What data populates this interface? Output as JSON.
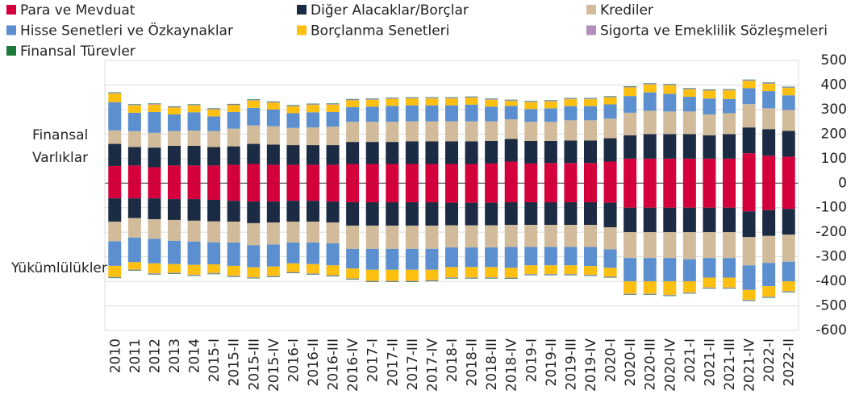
{
  "chart_data": {
    "type": "bar",
    "stacked": true,
    "annotations": [
      [
        "Finansal",
        "Varlıklar"
      ],
      [
        "Yükümlülükler"
      ]
    ],
    "categories": [
      "2010",
      "2011",
      "2012",
      "2013",
      "2014",
      "2015-I",
      "2015-II",
      "2015-III",
      "2015-IV",
      "2016-I",
      "2016-II",
      "2016-III",
      "2016-IV",
      "2017-I",
      "2017-II",
      "2017-III",
      "2017-IV",
      "2018-I",
      "2018-II",
      "2018-III",
      "2018-IV",
      "2019-I",
      "2019-II",
      "2019-III",
      "2019-IV",
      "2020-I",
      "2020-II",
      "2020-III",
      "2020-IV",
      "2021-I",
      "2021-II",
      "2021-III",
      "2021-IV",
      "2022-I",
      "2022-II"
    ],
    "series": [
      {
        "name": "Para ve Mevduat",
        "color": "#d4003b",
        "values": [
          70,
          72,
          65,
          72,
          72,
          72,
          75,
          78,
          75,
          75,
          75,
          75,
          78,
          78,
          78,
          78,
          78,
          78,
          78,
          80,
          88,
          80,
          82,
          82,
          82,
          88,
          100,
          100,
          100,
          100,
          100,
          100,
          122,
          112,
          108
        ],
        "liabilities": [
          -62,
          -62,
          -62,
          -65,
          -65,
          -68,
          -72,
          -75,
          -75,
          -72,
          -72,
          -75,
          -78,
          -78,
          -78,
          -78,
          -78,
          -80,
          -80,
          -80,
          -78,
          -78,
          -78,
          -78,
          -78,
          -80,
          -100,
          -100,
          -100,
          -100,
          -100,
          -100,
          -115,
          -110,
          -105
        ]
      },
      {
        "name": "Diğer Alacaklar/Borçlar",
        "color": "#1a2b43",
        "values": [
          90,
          75,
          80,
          80,
          80,
          75,
          75,
          82,
          82,
          80,
          80,
          80,
          90,
          90,
          90,
          92,
          92,
          92,
          92,
          92,
          92,
          92,
          90,
          92,
          92,
          95,
          95,
          100,
          100,
          100,
          95,
          100,
          105,
          108,
          105
        ],
        "liabilities": [
          -95,
          -80,
          -85,
          -85,
          -88,
          -88,
          -85,
          -88,
          -85,
          -85,
          -85,
          -85,
          -95,
          -95,
          -95,
          -95,
          -95,
          -92,
          -92,
          -92,
          -92,
          -92,
          -92,
          -92,
          -92,
          -100,
          -100,
          -100,
          -100,
          -100,
          -100,
          -100,
          -105,
          -105,
          -105
        ]
      },
      {
        "name": "Krediler",
        "color": "#d2bb9a",
        "values": [
          55,
          65,
          60,
          60,
          62,
          65,
          72,
          75,
          75,
          70,
          72,
          75,
          82,
          82,
          82,
          82,
          82,
          82,
          82,
          80,
          80,
          78,
          78,
          82,
          82,
          80,
          92,
          95,
          92,
          92,
          85,
          85,
          95,
          85,
          85
        ],
        "liabilities": [
          -80,
          -80,
          -80,
          -85,
          -85,
          -85,
          -85,
          -90,
          -90,
          -85,
          -85,
          -85,
          -95,
          -95,
          -95,
          -95,
          -95,
          -90,
          -90,
          -90,
          -90,
          -90,
          -90,
          -90,
          -90,
          -90,
          -105,
          -105,
          -105,
          -110,
          -105,
          -105,
          -115,
          -110,
          -110
        ]
      },
      {
        "name": "Hisse Senetleri ve Özkaynaklar",
        "color": "#5b8fd0",
        "values": [
          115,
          75,
          85,
          68,
          75,
          60,
          68,
          72,
          68,
          60,
          62,
          60,
          60,
          62,
          65,
          65,
          65,
          65,
          68,
          60,
          55,
          52,
          55,
          58,
          58,
          58,
          68,
          75,
          72,
          60,
          65,
          58,
          65,
          70,
          60
        ],
        "liabilities": [
          -100,
          -100,
          -100,
          -95,
          -95,
          -90,
          -95,
          -90,
          -90,
          -85,
          -88,
          -90,
          -80,
          -85,
          -85,
          -85,
          -85,
          -80,
          -80,
          -80,
          -85,
          -75,
          -75,
          -75,
          -78,
          -75,
          -95,
          -95,
          -95,
          -90,
          -80,
          -80,
          -100,
          -95,
          -80
        ]
      },
      {
        "name": "Borçlanma Senetleri",
        "color": "#fdc010",
        "values": [
          35,
          30,
          30,
          28,
          28,
          28,
          28,
          30,
          28,
          28,
          30,
          30,
          28,
          28,
          28,
          28,
          28,
          28,
          28,
          28,
          20,
          28,
          28,
          28,
          28,
          28,
          35,
          32,
          35,
          30,
          32,
          35,
          30,
          30,
          30
        ],
        "liabilities": [
          -45,
          -30,
          -40,
          -35,
          -40,
          -35,
          -40,
          -40,
          -38,
          -35,
          -38,
          -40,
          -40,
          -45,
          -45,
          -45,
          -42,
          -42,
          -42,
          -42,
          -40,
          -35,
          -35,
          -35,
          -35,
          -35,
          -50,
          -50,
          -55,
          -45,
          -40,
          -40,
          -40,
          -42,
          -40
        ]
      },
      {
        "name": "Sigorta ve Emeklilik Sözleşmeleri",
        "color": "#b08fbf",
        "values": [
          3,
          3,
          3,
          3,
          3,
          3,
          3,
          3,
          3,
          3,
          3,
          3,
          3,
          3,
          3,
          3,
          3,
          3,
          3,
          3,
          3,
          3,
          3,
          3,
          3,
          3,
          3,
          3,
          3,
          3,
          3,
          3,
          3,
          3,
          3
        ],
        "liabilities": [
          -3,
          -3,
          -3,
          -3,
          -3,
          -3,
          -3,
          -3,
          -3,
          -3,
          -3,
          -3,
          -3,
          -3,
          -3,
          -3,
          -3,
          -3,
          -3,
          -3,
          -3,
          -3,
          -3,
          -3,
          -3,
          -3,
          -3,
          -3,
          -3,
          -3,
          -3,
          -3,
          -3,
          -3,
          -3
        ]
      },
      {
        "name": "Finansal Türevler",
        "color": "#1a7a3a",
        "values": [
          2,
          2,
          2,
          2,
          2,
          2,
          2,
          2,
          2,
          2,
          2,
          2,
          2,
          2,
          2,
          2,
          2,
          2,
          2,
          2,
          2,
          2,
          2,
          2,
          2,
          2,
          2,
          2,
          2,
          2,
          2,
          2,
          2,
          2,
          2
        ],
        "liabilities": [
          -2,
          -2,
          -2,
          -2,
          -2,
          -2,
          -2,
          -2,
          -2,
          -2,
          -2,
          -2,
          -2,
          -2,
          -2,
          -2,
          -2,
          -2,
          -2,
          -2,
          -2,
          -2,
          -2,
          -2,
          -2,
          -2,
          -2,
          -2,
          -2,
          -2,
          -2,
          -2,
          -2,
          -2,
          -2
        ]
      }
    ],
    "ylim": [
      -600,
      500
    ],
    "yticks": [
      -600,
      -500,
      -400,
      -300,
      -200,
      -100,
      0,
      100,
      200,
      300,
      400,
      500
    ],
    "grid": true
  }
}
